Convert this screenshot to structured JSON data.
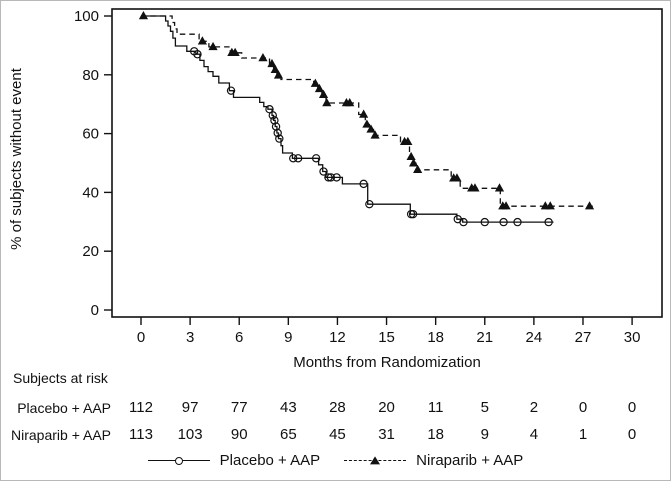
{
  "colors": {
    "line": "#111111",
    "background": "#ffffff",
    "text": "#111111"
  },
  "chart_data": {
    "type": "line",
    "subtype": "kaplan-meier-step",
    "title": "",
    "xlabel": "Months from Randomization",
    "ylabel": "% of subjects without event",
    "xlim": [
      0,
      30
    ],
    "ylim": [
      0,
      100
    ],
    "xticks": [
      0,
      3,
      6,
      9,
      12,
      15,
      18,
      21,
      24,
      27,
      30
    ],
    "yticks": [
      0,
      20,
      40,
      60,
      80,
      100
    ],
    "grid": false,
    "legend_position": "bottom",
    "series": [
      {
        "name": "Placebo + AAP",
        "line": "solid",
        "marker": "open-circle",
        "end_time": 25.2,
        "steps": [
          [
            0,
            100
          ],
          [
            1.5,
            98.3
          ],
          [
            1.65,
            96.6
          ],
          [
            1.8,
            94.8
          ],
          [
            1.95,
            92.5
          ],
          [
            2.1,
            89.8
          ],
          [
            2.8,
            88
          ],
          [
            3.35,
            87
          ],
          [
            3.6,
            84.9
          ],
          [
            3.85,
            82.8
          ],
          [
            4.1,
            81.1
          ],
          [
            4.4,
            79.5
          ],
          [
            4.75,
            77.2
          ],
          [
            5.4,
            74.6
          ],
          [
            5.65,
            72.3
          ],
          [
            7.25,
            70.6
          ],
          [
            7.5,
            69.2
          ],
          [
            7.75,
            68.3
          ],
          [
            8.0,
            66.2
          ],
          [
            8.1,
            64.5
          ],
          [
            8.2,
            62.4
          ],
          [
            8.3,
            60.2
          ],
          [
            8.4,
            58.3
          ],
          [
            8.55,
            55.9
          ],
          [
            8.65,
            53.4
          ],
          [
            9.25,
            51.6
          ],
          [
            10.85,
            49.4
          ],
          [
            11.1,
            47.1
          ],
          [
            11.3,
            45.1
          ],
          [
            12.3,
            42.9
          ],
          [
            13.85,
            36
          ],
          [
            16.45,
            32.6
          ],
          [
            19.3,
            30.9
          ],
          [
            19.65,
            29.9
          ]
        ],
        "censors": [
          [
            3.25,
            88
          ],
          [
            3.45,
            87
          ],
          [
            5.5,
            74.6
          ],
          [
            7.85,
            68.3
          ],
          [
            8.05,
            66.2
          ],
          [
            8.15,
            64.5
          ],
          [
            8.25,
            62.4
          ],
          [
            8.35,
            60.2
          ],
          [
            8.45,
            58.3
          ],
          [
            9.3,
            51.6
          ],
          [
            9.6,
            51.6
          ],
          [
            10.7,
            51.6
          ],
          [
            11.15,
            47.1
          ],
          [
            11.45,
            45.1
          ],
          [
            11.6,
            45.1
          ],
          [
            11.95,
            45.1
          ],
          [
            13.6,
            42.9
          ],
          [
            13.95,
            36
          ],
          [
            16.5,
            32.6
          ],
          [
            16.62,
            32.6
          ],
          [
            19.35,
            30.9
          ],
          [
            19.7,
            29.9
          ],
          [
            21.0,
            29.9
          ],
          [
            22.15,
            29.9
          ],
          [
            23.0,
            29.9
          ],
          [
            24.9,
            29.9
          ]
        ]
      },
      {
        "name": "Niraparib + AAP",
        "line": "dashed",
        "marker": "filled-triangle",
        "end_time": 27.6,
        "steps": [
          [
            0,
            100
          ],
          [
            1.9,
            97.8
          ],
          [
            2.05,
            95.6
          ],
          [
            2.2,
            93.8
          ],
          [
            3.55,
            91.4
          ],
          [
            4.15,
            89.5
          ],
          [
            5.45,
            87.5
          ],
          [
            6.15,
            85.7
          ],
          [
            7.85,
            83.7
          ],
          [
            8.1,
            81.7
          ],
          [
            8.3,
            79.8
          ],
          [
            8.55,
            78.4
          ],
          [
            10.55,
            77
          ],
          [
            10.8,
            75.2
          ],
          [
            11.05,
            73.2
          ],
          [
            11.3,
            70.4
          ],
          [
            13.3,
            66.5
          ],
          [
            13.7,
            63.1
          ],
          [
            13.95,
            61.4
          ],
          [
            14.2,
            59.4
          ],
          [
            15.85,
            57.2
          ],
          [
            16.4,
            52.1
          ],
          [
            16.6,
            49.9
          ],
          [
            16.8,
            47.7
          ],
          [
            18.95,
            44.8
          ],
          [
            19.5,
            41.4
          ],
          [
            21.95,
            35.3
          ]
        ],
        "censors": [
          [
            0.15,
            100
          ],
          [
            3.75,
            91.4
          ],
          [
            4.4,
            89.5
          ],
          [
            5.55,
            87.5
          ],
          [
            5.75,
            87.5
          ],
          [
            7.45,
            85.7
          ],
          [
            8.0,
            83.7
          ],
          [
            8.2,
            81.7
          ],
          [
            8.4,
            79.8
          ],
          [
            10.65,
            77
          ],
          [
            10.9,
            75.2
          ],
          [
            11.15,
            73.2
          ],
          [
            11.35,
            70.4
          ],
          [
            12.55,
            70.4
          ],
          [
            12.75,
            70.4
          ],
          [
            13.6,
            66.5
          ],
          [
            13.8,
            63.1
          ],
          [
            14.05,
            61.4
          ],
          [
            14.3,
            59.4
          ],
          [
            16.1,
            57.2
          ],
          [
            16.3,
            57.2
          ],
          [
            16.5,
            52.1
          ],
          [
            16.65,
            49.9
          ],
          [
            16.9,
            47.7
          ],
          [
            19.1,
            44.8
          ],
          [
            19.3,
            44.8
          ],
          [
            20.2,
            41.4
          ],
          [
            20.4,
            41.4
          ],
          [
            21.9,
            41.4
          ],
          [
            22.1,
            35.3
          ],
          [
            22.3,
            35.3
          ],
          [
            24.7,
            35.3
          ],
          [
            25.0,
            35.3
          ],
          [
            27.4,
            35.3
          ]
        ]
      }
    ]
  },
  "risk_table": {
    "title": "Subjects at risk",
    "timepoints": [
      0,
      3,
      6,
      9,
      12,
      15,
      18,
      21,
      24,
      27,
      30
    ],
    "rows": [
      {
        "label": "Placebo + AAP",
        "counts": [
          112,
          97,
          77,
          43,
          28,
          20,
          11,
          5,
          2,
          0,
          0
        ]
      },
      {
        "label": "Niraparib + AAP",
        "counts": [
          113,
          103,
          90,
          65,
          45,
          31,
          18,
          9,
          4,
          1,
          0
        ]
      }
    ]
  },
  "legend": [
    {
      "label": "Placebo + AAP",
      "marker": "open-circle",
      "line": "solid"
    },
    {
      "label": "Niraparib + AAP",
      "marker": "filled-triangle",
      "line": "dashed"
    }
  ]
}
